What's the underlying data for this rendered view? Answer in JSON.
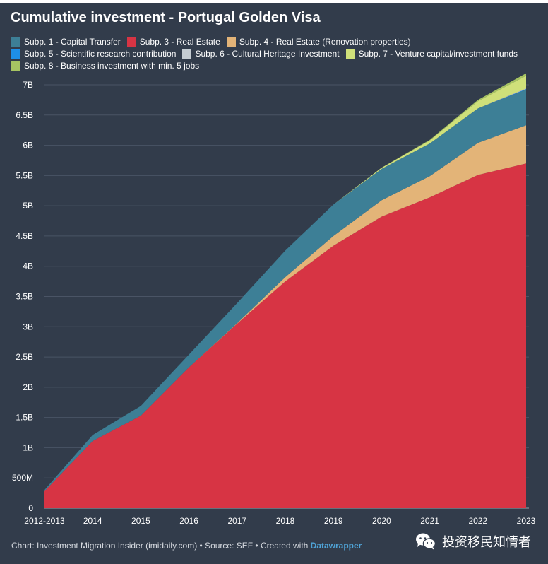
{
  "title": "Cumulative investment - Portugal Golden Visa",
  "footer": {
    "prefix": "Chart: Investment Migration Insider (imidaily.com) • Source: SEF • Created with ",
    "brand": "Datawrapper"
  },
  "watermark": {
    "text": "投资移民知情者",
    "icon": "wechat-icon"
  },
  "colors": {
    "background": "#323c4b",
    "grid": "#4a5465",
    "text": "#ffffff"
  },
  "chart_data": {
    "type": "area",
    "stacked": true,
    "title": "Cumulative investment - Portugal Golden Visa",
    "xlabel": "",
    "ylabel": "",
    "grid": true,
    "legend_position": "top",
    "categories": [
      "2012-2013",
      "2014",
      "2015",
      "2016",
      "2017",
      "2018",
      "2019",
      "2020",
      "2021",
      "2022",
      "2023"
    ],
    "y_ticks": [
      0,
      0.5,
      1,
      1.5,
      2,
      2.5,
      3,
      3.5,
      4,
      4.5,
      5,
      5.5,
      6,
      6.5,
      7
    ],
    "y_tick_labels": [
      "0",
      "500M",
      "1B",
      "1.5B",
      "2B",
      "2.5B",
      "3B",
      "3.5B",
      "4B",
      "4.5B",
      "5B",
      "5.5B",
      "6B",
      "6.5B",
      "7B"
    ],
    "ylim": [
      0,
      7
    ],
    "unit": "billion EUR",
    "series": [
      {
        "name": "Subp. 3 - Real Estate",
        "color": "#d73444",
        "values": [
          0.28,
          1.11,
          1.53,
          2.33,
          3.05,
          3.75,
          4.34,
          4.82,
          5.14,
          5.51,
          5.7
        ]
      },
      {
        "name": "Subp. 4 - Real Estate (Renovation properties)",
        "color": "#e3b478",
        "values": [
          0.0,
          0.0,
          0.0,
          0.0,
          0.01,
          0.07,
          0.16,
          0.27,
          0.35,
          0.53,
          0.63
        ]
      },
      {
        "name": "Subp. 1 - Capital Transfer",
        "color": "#3d7f96",
        "values": [
          0.02,
          0.1,
          0.16,
          0.21,
          0.33,
          0.44,
          0.52,
          0.52,
          0.54,
          0.57,
          0.59
        ]
      },
      {
        "name": "Subp. 5 - Scientific research contribution",
        "color": "#1e90e8",
        "values": [
          0,
          0,
          0,
          0,
          0,
          0,
          0,
          0,
          0,
          0,
          0.01
        ]
      },
      {
        "name": "Subp. 6 - Cultural Heritage Investment",
        "color": "#c5ccd2",
        "values": [
          0,
          0,
          0,
          0,
          0,
          0,
          0,
          0,
          0,
          0,
          0.01
        ]
      },
      {
        "name": "Subp. 7 - Venture capital/investment funds",
        "color": "#cfe07a",
        "values": [
          0,
          0,
          0,
          0,
          0,
          0,
          0,
          0.02,
          0.05,
          0.12,
          0.21
        ]
      },
      {
        "name": "Subp. 8 - Business investment with min. 5 jobs",
        "color": "#a7c462",
        "values": [
          0,
          0,
          0,
          0,
          0,
          0,
          0,
          0,
          0.01,
          0.02,
          0.04
        ]
      }
    ],
    "legend_order": [
      "Subp. 1 - Capital Transfer",
      "Subp. 3 - Real Estate",
      "Subp. 4 - Real Estate (Renovation properties)",
      "Subp. 5 - Scientific research contribution",
      "Subp. 6 - Cultural Heritage Investment",
      "Subp. 7 - Venture capital/investment funds",
      "Subp. 8 - Business investment with min. 5 jobs"
    ]
  }
}
